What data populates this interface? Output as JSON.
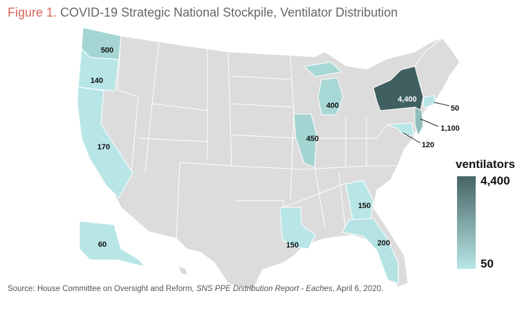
{
  "title": {
    "figure_label": "Figure 1.",
    "text": "COVID-19 Strategic National Stockpile, Ventilator Distribution"
  },
  "map": {
    "base_color": "#dcdcdc",
    "states": [
      {
        "state": "Washington",
        "value": "500",
        "color": "#a5d6d4"
      },
      {
        "state": "Oregon",
        "value": "140",
        "color": "#b8e6e6"
      },
      {
        "state": "California",
        "value": "170",
        "color": "#b8e6e6"
      },
      {
        "state": "Alaska",
        "value": "60",
        "color": "#b8e6e6"
      },
      {
        "state": "Illinois",
        "value": "450",
        "color": "#a3d4d2"
      },
      {
        "state": "Michigan",
        "value": "400",
        "color": "#a8d8d6"
      },
      {
        "state": "Louisiana",
        "value": "150",
        "color": "#b8e6e6"
      },
      {
        "state": "Georgia",
        "value": "150",
        "color": "#b8e6e6"
      },
      {
        "state": "Florida",
        "value": "200",
        "color": "#b5e3e3"
      },
      {
        "state": "New York",
        "value": "4,400",
        "color": "#3f5f61"
      },
      {
        "state": "Connecticut",
        "value": "50",
        "color": "#b8e6e6"
      },
      {
        "state": "New Jersey",
        "value": "1,100",
        "color": "#8fbdbb"
      },
      {
        "state": "Maryland",
        "value": "120",
        "color": "#b8e6e6"
      }
    ]
  },
  "legend": {
    "title": "ventilators",
    "max": "4,400",
    "min": "50",
    "max_color": "#476466",
    "min_color": "#b8e6e6"
  },
  "source": {
    "prefix": "Source: House Committee on Oversight and Reform, ",
    "italic": "SNS PPE Distribution Report - Eaches",
    "suffix": ", April 6, 2020."
  }
}
